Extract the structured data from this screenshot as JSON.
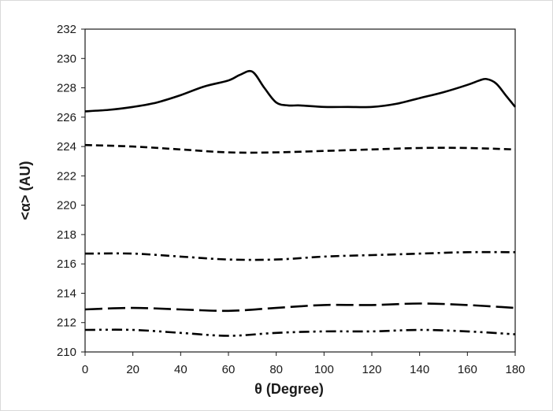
{
  "chart_data": {
    "type": "line",
    "xlabel": "θ (Degree)",
    "ylabel": "<α> (AU)",
    "xlim": [
      0,
      180
    ],
    "ylim": [
      210,
      232
    ],
    "xticks": [
      0,
      20,
      40,
      60,
      80,
      100,
      120,
      140,
      160,
      180
    ],
    "yticks": [
      210,
      212,
      214,
      216,
      218,
      220,
      222,
      224,
      226,
      228,
      230,
      232
    ],
    "grid": false,
    "legend": "none",
    "series": [
      {
        "style": "solid",
        "x": [
          0,
          10,
          20,
          30,
          40,
          50,
          60,
          65,
          70,
          75,
          80,
          85,
          90,
          100,
          110,
          120,
          130,
          140,
          150,
          160,
          165,
          168,
          172,
          176,
          180
        ],
        "y": [
          226.4,
          226.5,
          226.7,
          227.0,
          227.5,
          228.1,
          228.5,
          228.9,
          229.1,
          228.0,
          227.0,
          226.8,
          226.8,
          226.7,
          226.7,
          226.7,
          226.9,
          227.3,
          227.7,
          228.2,
          228.5,
          228.6,
          228.3,
          227.5,
          226.7
        ]
      },
      {
        "style": "dash",
        "x": [
          0,
          20,
          40,
          60,
          80,
          100,
          120,
          140,
          160,
          180
        ],
        "y": [
          224.1,
          224.0,
          223.8,
          223.6,
          223.6,
          223.7,
          223.8,
          223.9,
          223.9,
          223.8
        ]
      },
      {
        "style": "dash-dot",
        "x": [
          0,
          20,
          40,
          60,
          80,
          100,
          120,
          140,
          160,
          180
        ],
        "y": [
          216.7,
          216.7,
          216.5,
          216.3,
          216.3,
          216.5,
          216.6,
          216.7,
          216.8,
          216.8
        ]
      },
      {
        "style": "long-dash",
        "x": [
          0,
          20,
          40,
          60,
          80,
          100,
          120,
          140,
          160,
          180
        ],
        "y": [
          212.9,
          213.0,
          212.9,
          212.8,
          213.0,
          213.2,
          213.2,
          213.3,
          213.2,
          213.0
        ]
      },
      {
        "style": "dash-dot-dot",
        "x": [
          0,
          20,
          40,
          60,
          80,
          100,
          120,
          140,
          160,
          180
        ],
        "y": [
          211.5,
          211.5,
          211.3,
          211.1,
          211.3,
          211.4,
          211.4,
          211.5,
          211.4,
          211.2
        ]
      }
    ]
  }
}
